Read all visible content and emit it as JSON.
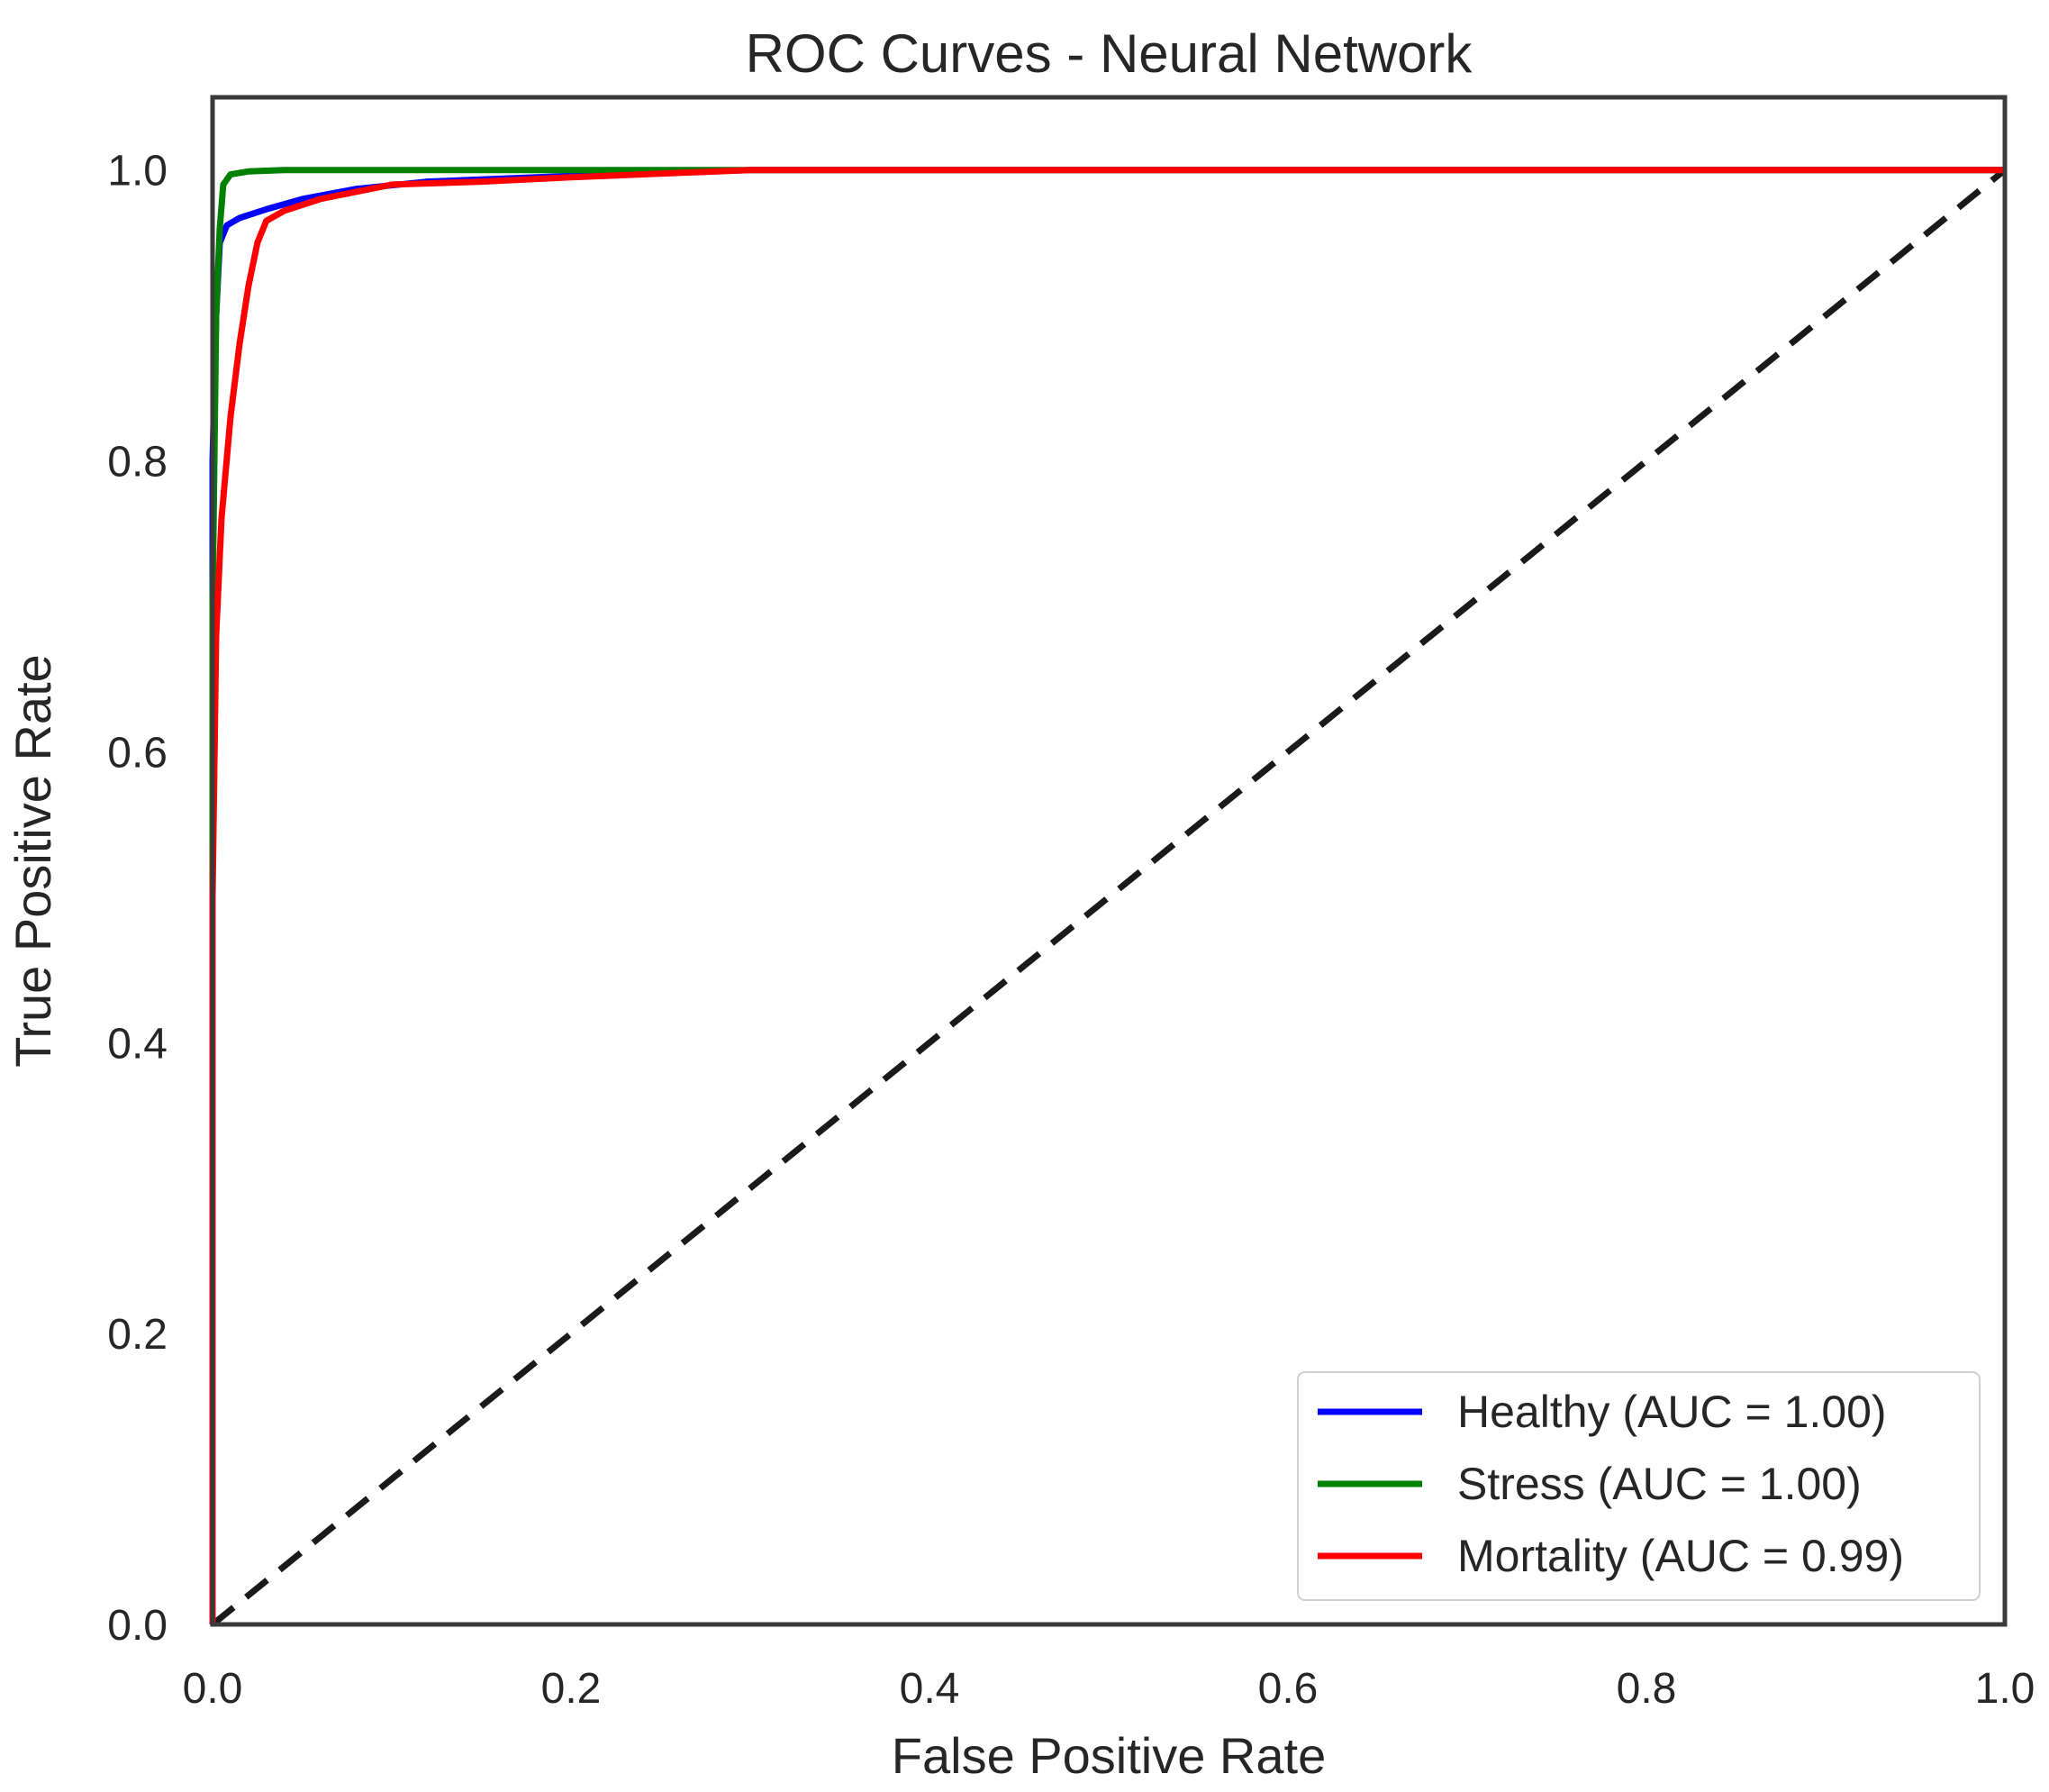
{
  "chart_data": {
    "type": "line",
    "title": "ROC Curves - Neural Network",
    "xlabel": "False Positive Rate",
    "ylabel": "True Positive Rate",
    "xlim": [
      0.0,
      1.0
    ],
    "ylim": [
      0.0,
      1.05
    ],
    "xticks": [
      "0.0",
      "0.2",
      "0.4",
      "0.6",
      "0.8",
      "1.0"
    ],
    "yticks": [
      "0.0",
      "0.2",
      "0.4",
      "0.6",
      "0.8",
      "1.0"
    ],
    "grid": false,
    "legend_position": "bottom-right",
    "series": [
      {
        "name": "Healthy (AUC = 1.00)",
        "color": "#0000ff",
        "x": [
          0.0,
          0.0,
          0.002,
          0.004,
          0.008,
          0.015,
          0.03,
          0.05,
          0.08,
          0.12,
          0.2,
          0.3,
          0.5,
          1.0
        ],
        "y": [
          0.0,
          0.8,
          0.9,
          0.95,
          0.962,
          0.967,
          0.973,
          0.98,
          0.987,
          0.992,
          0.996,
          1.0,
          1.0,
          1.0
        ]
      },
      {
        "name": "Stress (AUC = 1.00)",
        "color": "#008000",
        "x": [
          0.0,
          0.0,
          0.002,
          0.004,
          0.006,
          0.01,
          0.02,
          0.04,
          0.1,
          0.3,
          1.0
        ],
        "y": [
          0.0,
          0.7,
          0.9,
          0.96,
          0.99,
          0.997,
          0.999,
          1.0,
          1.0,
          1.0,
          1.0
        ]
      },
      {
        "name": "Mortality (AUC = 0.99)",
        "color": "#ff0000",
        "x": [
          0.0,
          0.0,
          0.002,
          0.005,
          0.01,
          0.015,
          0.02,
          0.025,
          0.03,
          0.04,
          0.06,
          0.08,
          0.1,
          0.15,
          0.2,
          0.3,
          0.5,
          1.0
        ],
        "y": [
          0.0,
          0.5,
          0.68,
          0.76,
          0.83,
          0.88,
          0.92,
          0.95,
          0.965,
          0.972,
          0.98,
          0.985,
          0.99,
          0.992,
          0.995,
          1.0,
          1.0,
          1.0
        ]
      },
      {
        "name": "chance",
        "color": "#1a1a1a",
        "dashed": true,
        "x": [
          0.0,
          1.0
        ],
        "y": [
          0.0,
          1.0
        ]
      }
    ]
  }
}
